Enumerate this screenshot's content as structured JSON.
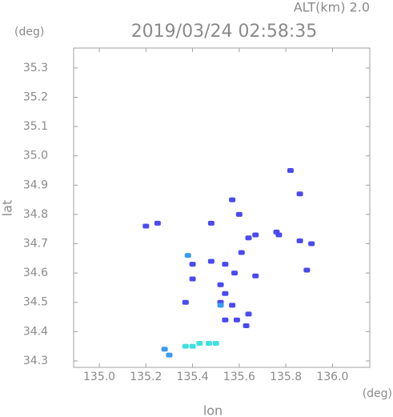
{
  "chart_data": {
    "type": "scatter",
    "title": "2019/03/24 02:58:35",
    "subtitle": "ALT(km) 2.0",
    "x_label": "lon",
    "y_label": "lat",
    "x_unit": "(deg)",
    "y_unit": "(deg)",
    "xlim": [
      134.89,
      136.16
    ],
    "ylim": [
      34.278,
      35.368
    ],
    "xticks": [
      {
        "value": 135,
        "label": "135.0"
      },
      135.2,
      135.4,
      135.6,
      135.8,
      {
        "value": 136,
        "label": "136.0"
      }
    ],
    "yticks": [
      34.3,
      34.4,
      34.5,
      34.6,
      34.7,
      34.8,
      34.9,
      {
        "value": 35,
        "label": "35.0"
      },
      35.1,
      35.2,
      35.3
    ],
    "grid": false,
    "series": [
      {
        "color": "#4a4af0",
        "x": [
          135.2,
          135.25,
          135.48,
          135.57,
          135.6,
          135.67,
          135.76,
          135.77,
          135.82,
          135.86,
          135.86,
          135.91,
          135.89,
          135.64,
          135.61,
          135.48,
          135.4,
          135.54,
          135.58,
          135.52,
          135.54,
          135.52,
          135.57,
          135.4,
          135.37,
          135.64,
          135.59,
          135.54,
          135.63,
          135.67
        ],
        "y": [
          34.76,
          34.77,
          34.77,
          34.85,
          34.8,
          34.73,
          34.74,
          34.73,
          34.95,
          34.87,
          34.71,
          34.7,
          34.61,
          34.72,
          34.67,
          34.64,
          34.63,
          34.63,
          34.6,
          34.56,
          34.53,
          34.5,
          34.49,
          34.58,
          34.5,
          34.46,
          34.44,
          34.44,
          34.42,
          34.59
        ]
      },
      {
        "color": "#3a9cf0",
        "x": [
          135.28,
          135.3,
          135.38,
          135.52
        ],
        "y": [
          34.34,
          34.32,
          34.66,
          34.49
        ]
      },
      {
        "color": "#40e0e0",
        "x": [
          135.37,
          135.4,
          135.43,
          135.47,
          135.5
        ],
        "y": [
          34.35,
          34.35,
          34.36,
          34.36,
          34.36
        ]
      }
    ]
  }
}
